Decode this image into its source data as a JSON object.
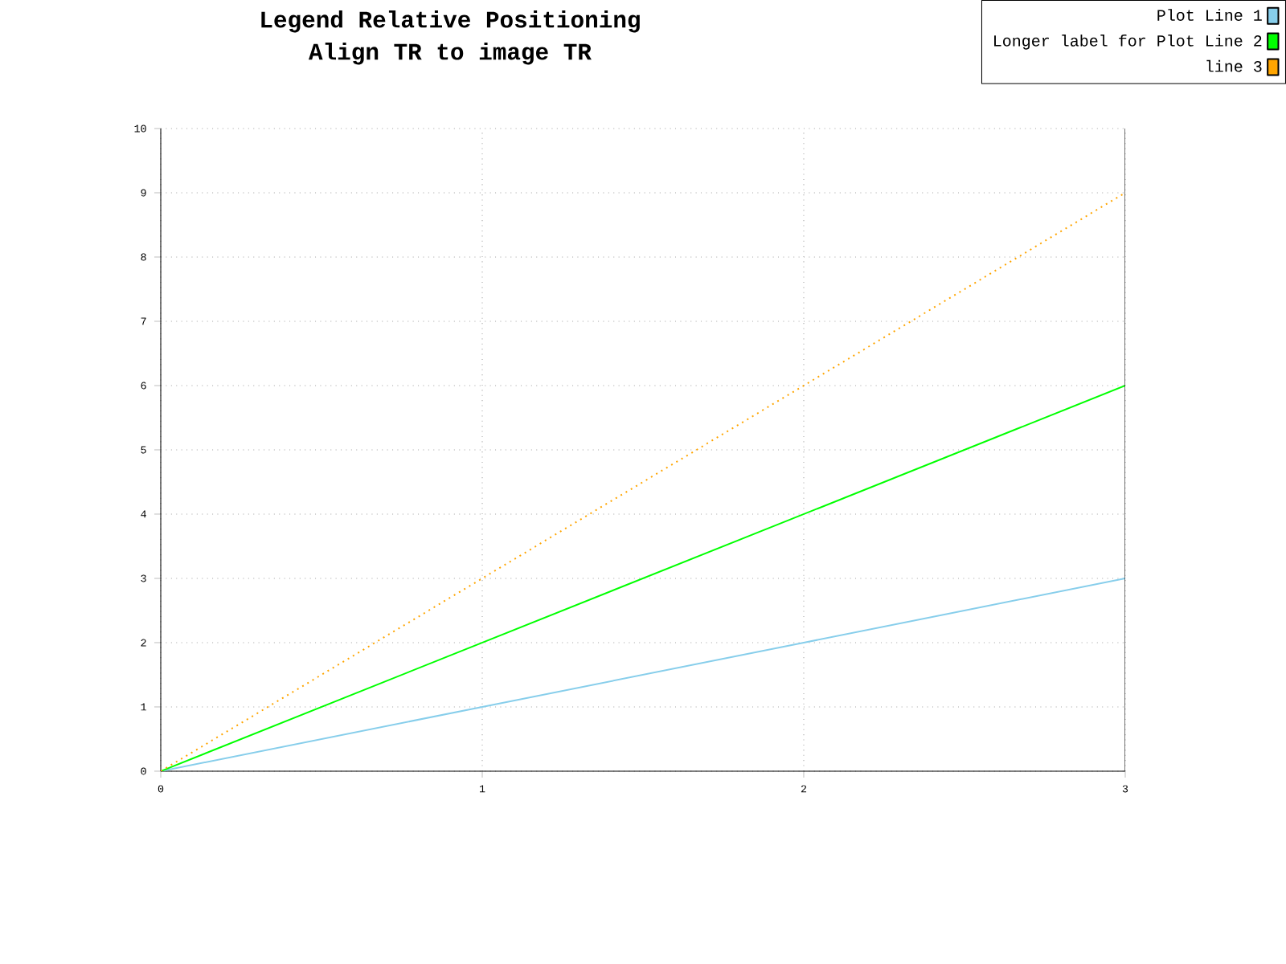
{
  "chart_data": {
    "type": "line",
    "title": "Legend Relative Positioning",
    "subtitle": "Align TR to image TR",
    "x": [
      0,
      1,
      2,
      3
    ],
    "series": [
      {
        "name": "Plot Line 1",
        "color": "#87ceeb",
        "values": [
          0,
          1,
          2,
          3
        ]
      },
      {
        "name": "Longer label for Plot Line 2",
        "color": "#00ff00",
        "values": [
          0,
          2,
          4,
          6
        ]
      },
      {
        "name": "line 3",
        "color": "#ffa500",
        "values": [
          0,
          3,
          6,
          9
        ],
        "line_style": "dotted"
      }
    ],
    "xlim": [
      0,
      3
    ],
    "ylim": [
      0,
      10
    ],
    "xticks": [
      0,
      1,
      2,
      3
    ],
    "yticks": [
      0,
      1,
      2,
      3,
      4,
      5,
      6,
      7,
      8,
      9,
      10
    ],
    "grid": true,
    "legend": "top right",
    "marker": "none"
  }
}
